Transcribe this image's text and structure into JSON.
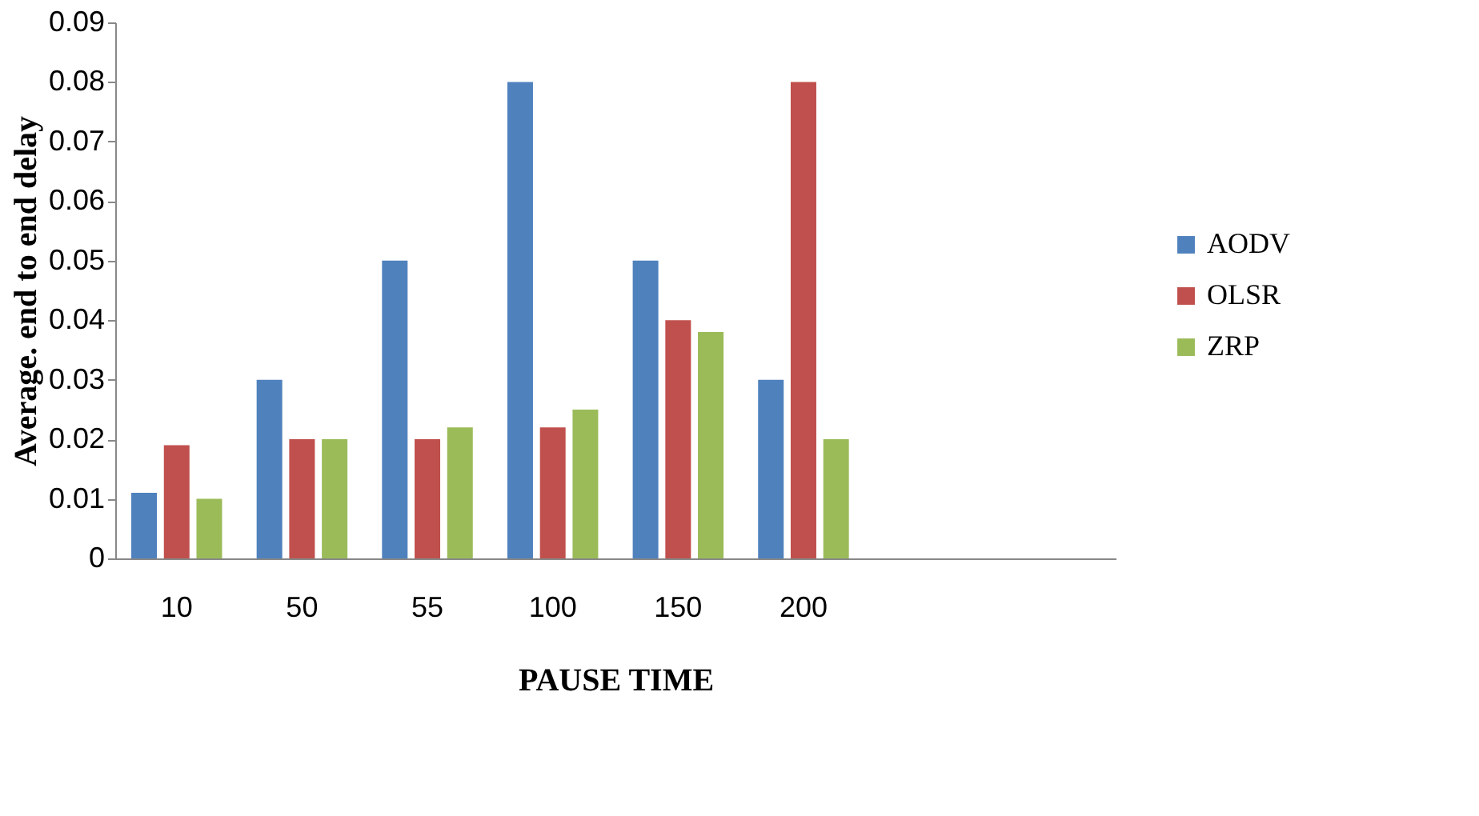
{
  "chart_data": {
    "type": "bar",
    "xlabel": "PAUSE  TIME",
    "ylabel": "Average. end to end delay",
    "categories": [
      "10",
      "50",
      "55",
      "100",
      "150",
      "200",
      null,
      null
    ],
    "series": [
      {
        "name": "AODV",
        "color": "#4f81bd",
        "values": [
          0.011,
          0.03,
          0.05,
          0.08,
          0.05,
          0.03,
          null,
          null
        ]
      },
      {
        "name": "OLSR",
        "color": "#c0504d",
        "values": [
          0.019,
          0.02,
          0.02,
          0.022,
          0.04,
          0.08,
          null,
          null
        ]
      },
      {
        "name": "ZRP",
        "color": "#9bbb59",
        "values": [
          0.01,
          0.02,
          0.022,
          0.025,
          0.038,
          0.02,
          null,
          null
        ]
      }
    ],
    "ylim": [
      0,
      0.09
    ],
    "yticks": [
      0,
      0.01,
      0.02,
      0.03,
      0.04,
      0.05,
      0.06,
      0.07,
      0.08,
      0.09
    ],
    "grid": false,
    "legend": "right"
  }
}
